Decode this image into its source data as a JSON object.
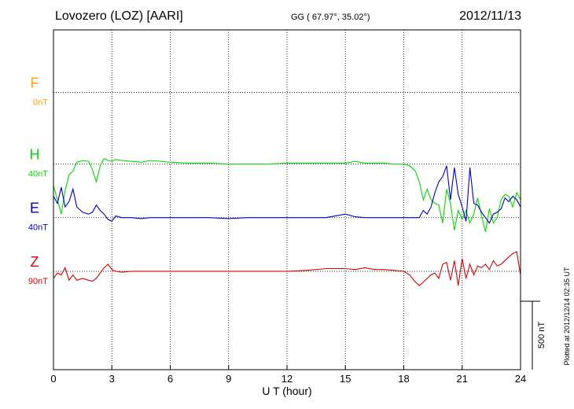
{
  "header": {
    "station": "Lovozero (LOZ)  [AARI]",
    "coords": "GG ( 67.97°,  35.02°)",
    "date": "2012/11/13"
  },
  "plotted_note": "Plotted at 2012/12/14 02:35 UT",
  "scale_label": "500 nT",
  "chart_data": {
    "type": "line",
    "xlabel": "U T (hour)",
    "xlim": [
      0,
      24
    ],
    "xticks": [
      "0",
      "3",
      "6",
      "9",
      "12",
      "15",
      "18",
      "21",
      "24"
    ],
    "ylim_nT": [
      -1550,
      350
    ],
    "scale_bar_nT": 500,
    "grid": true,
    "components": [
      {
        "name": "F",
        "offset": "0nT",
        "color": "#ffa500",
        "baseline_nT": 0,
        "x": [],
        "y": []
      },
      {
        "name": "H",
        "offset": "40nT",
        "color": "#00dd00",
        "baseline_nT": -400,
        "x": [
          0,
          0.2,
          0.4,
          0.6,
          0.8,
          1,
          1.2,
          1.5,
          1.8,
          2,
          2.2,
          2.4,
          2.6,
          2.8,
          3,
          3.2,
          3.5,
          4,
          4.5,
          5,
          6,
          7,
          8,
          9,
          10,
          11,
          12,
          13,
          14,
          15,
          15.5,
          16,
          16.5,
          17,
          17.5,
          18,
          18.3,
          18.6,
          18.8,
          19,
          19.2,
          19.4,
          19.6,
          19.8,
          20,
          20.2,
          20.4,
          20.6,
          20.8,
          21,
          21.2,
          21.4,
          21.6,
          21.8,
          22,
          22.2,
          22.4,
          22.6,
          22.8,
          23,
          23.2,
          23.4,
          23.6,
          23.8,
          24
        ],
        "y": [
          -120,
          -200,
          -280,
          -150,
          -60,
          -40,
          10,
          20,
          15,
          -30,
          -100,
          -10,
          30,
          20,
          15,
          25,
          20,
          15,
          10,
          20,
          10,
          5,
          5,
          0,
          0,
          0,
          5,
          5,
          5,
          5,
          15,
          5,
          5,
          5,
          0,
          0,
          -10,
          -40,
          -100,
          -200,
          -140,
          -200,
          -220,
          -230,
          -330,
          -140,
          -220,
          -370,
          -260,
          -310,
          -260,
          -330,
          -280,
          -190,
          -290,
          -380,
          -250,
          -330,
          -300,
          -200,
          -170,
          -180,
          -240,
          -160,
          -200
        ]
      },
      {
        "name": "E",
        "offset": "40nT",
        "color": "#0000cc",
        "baseline_nT": -700,
        "x": [
          0,
          0.2,
          0.4,
          0.6,
          0.8,
          1,
          1.2,
          1.5,
          1.8,
          2,
          2.2,
          2.4,
          2.6,
          2.8,
          3,
          3.2,
          3.5,
          4,
          4.5,
          5,
          6,
          7,
          8,
          9,
          10,
          11,
          12,
          13,
          14,
          15,
          15.5,
          16,
          16.5,
          17,
          17.5,
          18,
          18.3,
          18.6,
          18.8,
          19,
          19.2,
          19.4,
          19.6,
          19.8,
          20,
          20.2,
          20.4,
          20.6,
          20.8,
          21,
          21.2,
          21.4,
          21.6,
          21.8,
          22,
          22.2,
          22.4,
          22.6,
          22.8,
          23,
          23.2,
          23.4,
          23.6,
          23.8,
          24
        ],
        "y": [
          120,
          80,
          170,
          60,
          90,
          160,
          60,
          30,
          20,
          30,
          70,
          40,
          20,
          -10,
          -20,
          10,
          0,
          0,
          -5,
          0,
          0,
          0,
          0,
          -5,
          0,
          0,
          0,
          0,
          0,
          20,
          5,
          0,
          0,
          0,
          0,
          0,
          0,
          0,
          0,
          40,
          20,
          60,
          140,
          200,
          230,
          290,
          100,
          280,
          130,
          60,
          -20,
          280,
          80,
          70,
          30,
          0,
          -30,
          20,
          30,
          50,
          110,
          90,
          120,
          100,
          60
        ]
      },
      {
        "name": "Z",
        "offset": "90nT",
        "color": "#dd0000",
        "baseline_nT": -1000,
        "x": [
          0,
          0.2,
          0.4,
          0.6,
          0.8,
          1,
          1.2,
          1.5,
          1.8,
          2,
          2.2,
          2.4,
          2.6,
          2.8,
          3,
          3.2,
          3.5,
          4,
          4.5,
          5,
          6,
          7,
          8,
          9,
          10,
          11,
          12,
          13,
          14,
          15,
          15.5,
          16,
          16.5,
          17,
          17.5,
          18,
          18.3,
          18.6,
          18.8,
          19,
          19.2,
          19.4,
          19.6,
          19.8,
          20,
          20.2,
          20.4,
          20.6,
          20.8,
          21,
          21.2,
          21.4,
          21.6,
          21.8,
          22,
          22.2,
          22.4,
          22.6,
          22.8,
          23,
          23.2,
          23.4,
          23.6,
          23.8,
          24
        ],
        "y": [
          -40,
          -10,
          -20,
          20,
          -50,
          -20,
          -50,
          -40,
          -50,
          -55,
          -40,
          -10,
          20,
          40,
          10,
          0,
          -5,
          0,
          0,
          0,
          0,
          0,
          0,
          0,
          0,
          0,
          0,
          5,
          15,
          15,
          10,
          20,
          10,
          10,
          5,
          0,
          -20,
          -60,
          -80,
          -60,
          -40,
          -20,
          -10,
          -40,
          40,
          50,
          -50,
          60,
          -80,
          70,
          -40,
          40,
          -20,
          30,
          20,
          40,
          10,
          60,
          30,
          40,
          60,
          80,
          100,
          110,
          -20
        ]
      }
    ]
  }
}
